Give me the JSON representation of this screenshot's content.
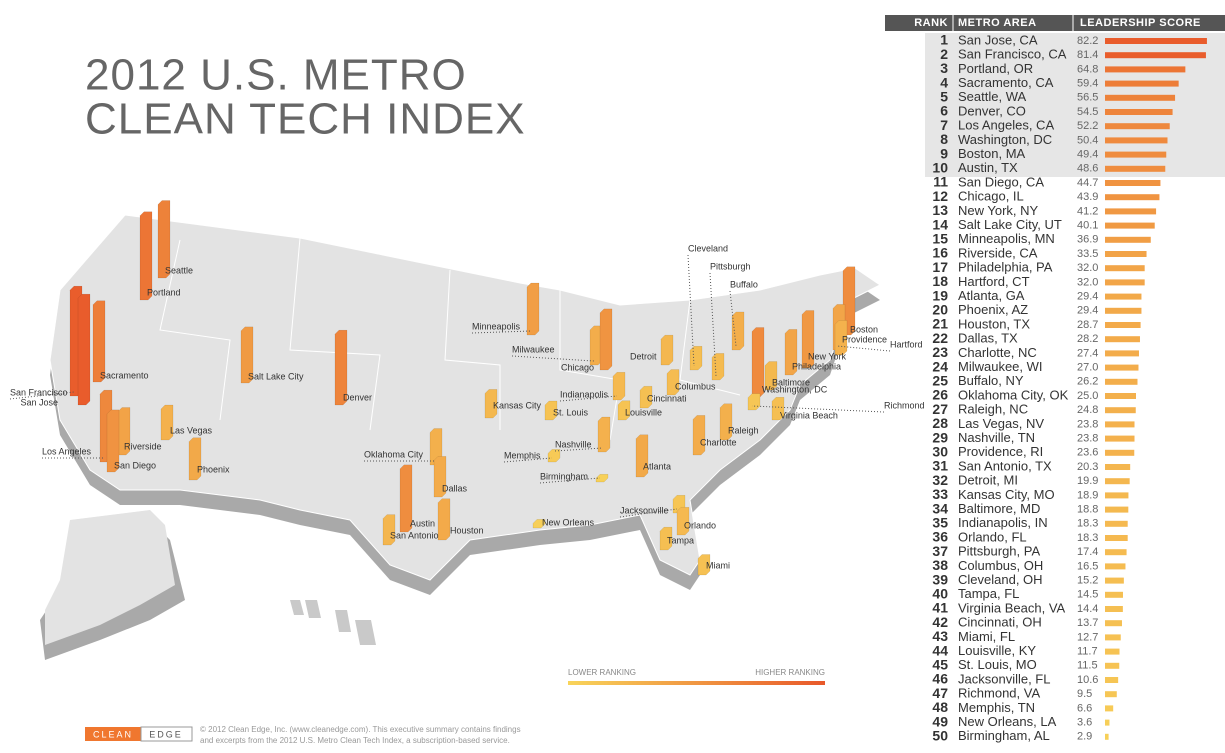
{
  "header": {
    "title_line1": "2012 U.S. METRO",
    "title_line2": "CLEAN TECH INDEX"
  },
  "table": {
    "headers": [
      "RANK",
      "METRO AREA",
      "LEADERSHIP SCORE"
    ],
    "rows": [
      {
        "rank": 1,
        "metro": "San Jose, CA",
        "score": 82.2
      },
      {
        "rank": 2,
        "metro": "San Francisco, CA",
        "score": 81.4
      },
      {
        "rank": 3,
        "metro": "Portland, OR",
        "score": 64.8
      },
      {
        "rank": 4,
        "metro": "Sacramento, CA",
        "score": 59.4
      },
      {
        "rank": 5,
        "metro": "Seattle, WA",
        "score": 56.5
      },
      {
        "rank": 6,
        "metro": "Denver, CO",
        "score": 54.5
      },
      {
        "rank": 7,
        "metro": "Los Angeles, CA",
        "score": 52.2
      },
      {
        "rank": 8,
        "metro": "Washington, DC",
        "score": 50.4
      },
      {
        "rank": 9,
        "metro": "Boston, MA",
        "score": 49.4
      },
      {
        "rank": 10,
        "metro": "Austin, TX",
        "score": 48.6
      },
      {
        "rank": 11,
        "metro": "San Diego, CA",
        "score": 44.7
      },
      {
        "rank": 12,
        "metro": "Chicago, IL",
        "score": 43.9
      },
      {
        "rank": 13,
        "metro": "New York, NY",
        "score": 41.2
      },
      {
        "rank": 14,
        "metro": "Salt Lake City, UT",
        "score": 40.1
      },
      {
        "rank": 15,
        "metro": "Minneapolis, MN",
        "score": 36.9
      },
      {
        "rank": 16,
        "metro": "Riverside, CA",
        "score": 33.5
      },
      {
        "rank": 17,
        "metro": "Philadelphia, PA",
        "score": 32,
        "score_label": "32.0"
      },
      {
        "rank": 18,
        "metro": "Hartford, CT",
        "score": 32,
        "score_label": "32.0"
      },
      {
        "rank": 19,
        "metro": "Atlanta, GA",
        "score": 29.4
      },
      {
        "rank": 20,
        "metro": "Phoenix, AZ",
        "score": 29.4
      },
      {
        "rank": 21,
        "metro": "Houston, TX",
        "score": 28.7
      },
      {
        "rank": 22,
        "metro": "Dallas, TX",
        "score": 28.2
      },
      {
        "rank": 23,
        "metro": "Charlotte, NC",
        "score": 27.4
      },
      {
        "rank": 24,
        "metro": "Milwaukee, WI",
        "score": 27,
        "score_label": "27.0"
      },
      {
        "rank": 25,
        "metro": "Buffalo, NY",
        "score": 26.2
      },
      {
        "rank": 26,
        "metro": "Oklahoma City, OK",
        "score": 25,
        "score_label": "25.0"
      },
      {
        "rank": 27,
        "metro": "Raleigh, NC",
        "score": 24.8
      },
      {
        "rank": 28,
        "metro": "Las Vegas, NV",
        "score": 23.8
      },
      {
        "rank": 29,
        "metro": "Nashville, TN",
        "score": 23.8
      },
      {
        "rank": 30,
        "metro": "Providence, RI",
        "score": 23.6
      },
      {
        "rank": 31,
        "metro": "San Antonio, TX",
        "score": 20.3
      },
      {
        "rank": 32,
        "metro": "Detroit, MI",
        "score": 19.9
      },
      {
        "rank": 33,
        "metro": "Kansas City, MO",
        "score": 18.9
      },
      {
        "rank": 34,
        "metro": "Baltimore, MD",
        "score": 18.8
      },
      {
        "rank": 35,
        "metro": "Indianapolis, IN",
        "score": 18.3
      },
      {
        "rank": 36,
        "metro": "Orlando, FL",
        "score": 18.3
      },
      {
        "rank": 37,
        "metro": "Pittsburgh, PA",
        "score": 17.4
      },
      {
        "rank": 38,
        "metro": "Columbus, OH",
        "score": 16.5
      },
      {
        "rank": 39,
        "metro": "Cleveland, OH",
        "score": 15.2
      },
      {
        "rank": 40,
        "metro": "Tampa, FL",
        "score": 14.5
      },
      {
        "rank": 41,
        "metro": "Virginia Beach, VA",
        "score": 14.4
      },
      {
        "rank": 42,
        "metro": "Cincinnati, OH",
        "score": 13.7
      },
      {
        "rank": 43,
        "metro": "Miami, FL",
        "score": 12.7
      },
      {
        "rank": 44,
        "metro": "Louisville, KY",
        "score": 11.7
      },
      {
        "rank": 45,
        "metro": "St. Louis, MO",
        "score": 11.5
      },
      {
        "rank": 46,
        "metro": "Jacksonville, FL",
        "score": 10.6
      },
      {
        "rank": 47,
        "metro": "Richmond, VA",
        "score": 9.5
      },
      {
        "rank": 48,
        "metro": "Memphis, TN",
        "score": 6.6
      },
      {
        "rank": 49,
        "metro": "New Orleans, LA",
        "score": 3.6
      },
      {
        "rank": 50,
        "metro": "Birmingham, AL",
        "score": 2.9
      }
    ]
  },
  "map": {
    "cities": [
      "San Jose",
      "San Francisco",
      "Portland",
      "Sacramento",
      "Seattle",
      "Denver",
      "Los Angeles",
      "Washington, DC",
      "Boston",
      "Austin",
      "San Diego",
      "Chicago",
      "New York",
      "Salt Lake City",
      "Minneapolis",
      "Riverside",
      "Philadelphia",
      "Hartford",
      "Atlanta",
      "Phoenix",
      "Houston",
      "Dallas",
      "Charlotte",
      "Milwaukee",
      "Buffalo",
      "Oklahoma City",
      "Raleigh",
      "Las Vegas",
      "Nashville",
      "Providence",
      "San Antonio",
      "Detroit",
      "Kansas City",
      "Baltimore",
      "Indianapolis",
      "Orlando",
      "Pittsburgh",
      "Columbus",
      "Cleveland",
      "Tampa",
      "Virginia Beach",
      "Cincinnati",
      "Miami",
      "Louisville",
      "St. Louis",
      "Jacksonville",
      "Richmond",
      "Memphis",
      "New Orleans",
      "Birmingham"
    ]
  },
  "legend": {
    "low": "LOWER RANKING",
    "high": "HIGHER RANKING"
  },
  "footer": {
    "logo_left": "CLEAN",
    "logo_right": "EDGE",
    "line1": "© 2012 Clean Edge, Inc. (www.cleanedge.com). This executive summary contains findings",
    "line2": "and excerpts from the 2012 U.S. Metro Clean Tech Index, a subscription-based service."
  }
}
